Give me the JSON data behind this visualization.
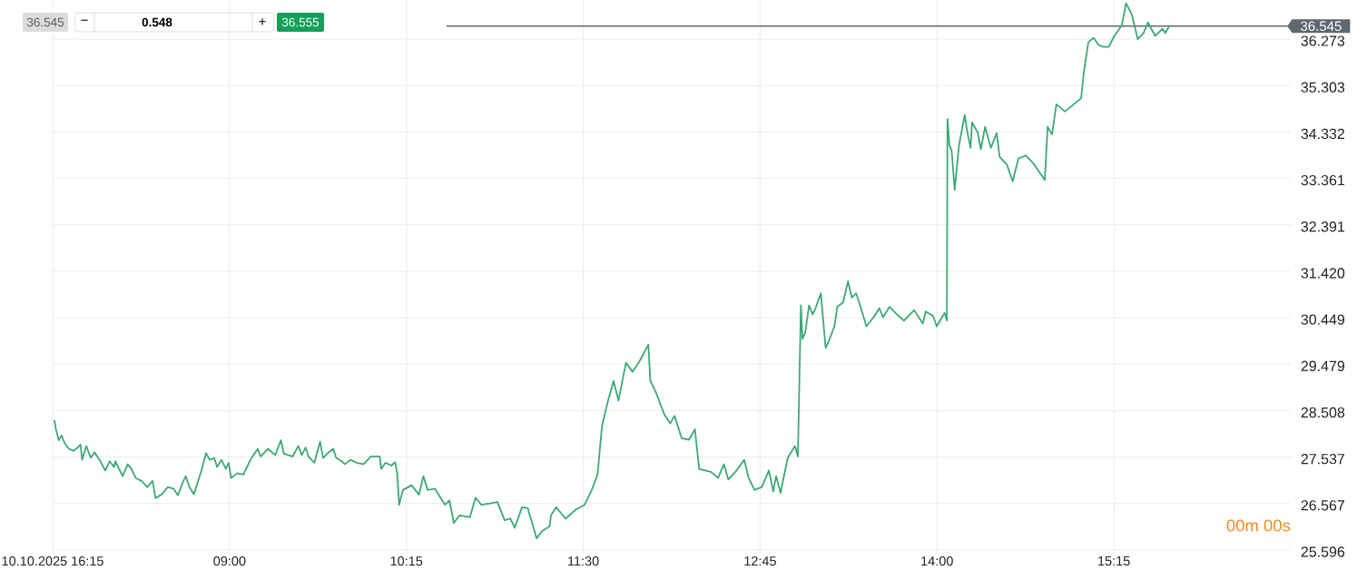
{
  "chart_data": {
    "type": "line",
    "color": "#3da877",
    "x": [
      7.762,
      7.773,
      7.793,
      7.814,
      7.834,
      7.865,
      7.896,
      7.916,
      7.947,
      7.958,
      7.988,
      8.019,
      8.046,
      8.081,
      8.122,
      8.153,
      8.184,
      8.193,
      8.245,
      8.28,
      8.307,
      8.337,
      8.378,
      8.419,
      8.456,
      8.477,
      8.522,
      8.563,
      8.604,
      8.635,
      8.666,
      8.69,
      8.717,
      8.748,
      8.799,
      8.834,
      8.861,
      8.892,
      8.912,
      8.943,
      8.974,
      8.994,
      9.011,
      9.055,
      9.097,
      9.148,
      9.169,
      9.2,
      9.22,
      9.271,
      9.323,
      9.343,
      9.363,
      9.384,
      9.446,
      9.486,
      9.511,
      9.538,
      9.558,
      9.6,
      9.64,
      9.661,
      9.702,
      9.733,
      9.754,
      9.794,
      9.815,
      9.856,
      9.897,
      9.948,
      10.0,
      10.062,
      10.072,
      10.102,
      10.143,
      10.17,
      10.185,
      10.199,
      10.225,
      10.287,
      10.339,
      10.37,
      10.4,
      10.451,
      10.523,
      10.554,
      10.585,
      10.626,
      10.698,
      10.739,
      10.78,
      10.841,
      10.893,
      10.944,
      10.985,
      11.016,
      11.067,
      11.108,
      11.17,
      11.211,
      11.262,
      11.272,
      11.309,
      11.375,
      11.447,
      11.509,
      11.56,
      11.601,
      11.632,
      11.673,
      11.714,
      11.749,
      11.802,
      11.848,
      11.898,
      11.96,
      11.974,
      12.011,
      12.073,
      12.114,
      12.145,
      12.196,
      12.248,
      12.289,
      12.319,
      12.402,
      12.453,
      12.494,
      12.525,
      12.576,
      12.638,
      12.669,
      12.71,
      12.761,
      12.812,
      12.843,
      12.863,
      12.894,
      12.945,
      12.996,
      13.017,
      13.038,
      13.049,
      13.069,
      13.096,
      13.121,
      13.142,
      13.179,
      13.213,
      13.234,
      13.275,
      13.295,
      13.336,
      13.371,
      13.398,
      13.429,
      13.47,
      13.501,
      13.552,
      13.593,
      13.618,
      13.665,
      13.716,
      13.767,
      13.839,
      13.9,
      13.92,
      13.972,
      13.998,
      14.054,
      14.07,
      14.074,
      14.088,
      14.104,
      14.125,
      14.156,
      14.196,
      14.211,
      14.237,
      14.248,
      14.289,
      14.31,
      14.34,
      14.381,
      14.422,
      14.443,
      14.494,
      14.535,
      14.576,
      14.628,
      14.68,
      14.762,
      14.782,
      14.813,
      14.844,
      14.905,
      14.967,
      15.019,
      15.039,
      15.07,
      15.107,
      15.142,
      15.173,
      15.213,
      15.254,
      15.306,
      15.336,
      15.378,
      15.419,
      15.46,
      15.491,
      15.542,
      15.593,
      15.614,
      15.644
    ],
    "values": [
      28.31,
      28.12,
      27.89,
      27.99,
      27.83,
      27.71,
      27.67,
      27.71,
      27.8,
      27.48,
      27.77,
      27.52,
      27.64,
      27.48,
      27.26,
      27.45,
      27.33,
      27.45,
      27.14,
      27.39,
      27.29,
      27.1,
      27.04,
      26.91,
      27.04,
      26.68,
      26.76,
      26.91,
      26.88,
      26.74,
      26.98,
      27.14,
      26.91,
      26.76,
      27.23,
      27.62,
      27.48,
      27.52,
      27.33,
      27.48,
      27.29,
      27.42,
      27.1,
      27.2,
      27.17,
      27.48,
      27.58,
      27.71,
      27.55,
      27.71,
      27.58,
      27.74,
      27.89,
      27.61,
      27.55,
      27.77,
      27.58,
      27.74,
      27.55,
      27.42,
      27.86,
      27.52,
      27.64,
      27.71,
      27.52,
      27.45,
      27.39,
      27.48,
      27.42,
      27.39,
      27.55,
      27.55,
      27.29,
      27.42,
      27.36,
      27.43,
      27.2,
      26.54,
      26.85,
      26.95,
      26.75,
      27.14,
      26.85,
      26.88,
      26.54,
      26.63,
      26.16,
      26.32,
      26.28,
      26.69,
      26.54,
      26.57,
      26.6,
      26.22,
      26.25,
      26.06,
      26.49,
      26.47,
      25.84,
      26.0,
      26.09,
      26.32,
      26.49,
      26.25,
      26.44,
      26.54,
      26.85,
      27.17,
      28.18,
      28.69,
      29.13,
      28.72,
      29.51,
      29.32,
      29.54,
      29.89,
      29.13,
      28.91,
      28.43,
      28.24,
      28.4,
      27.93,
      27.9,
      28.12,
      27.29,
      27.23,
      27.1,
      27.39,
      27.07,
      27.23,
      27.48,
      27.1,
      26.85,
      26.91,
      27.26,
      26.82,
      27.14,
      26.79,
      27.52,
      27.77,
      27.55,
      30.71,
      30.01,
      30.14,
      30.71,
      30.52,
      30.65,
      30.96,
      29.82,
      29.95,
      30.27,
      30.68,
      30.77,
      31.21,
      30.87,
      30.96,
      30.58,
      30.27,
      30.46,
      30.65,
      30.46,
      30.68,
      30.52,
      30.39,
      30.61,
      30.33,
      30.58,
      30.49,
      30.27,
      30.55,
      30.39,
      34.6,
      34.06,
      33.93,
      33.12,
      34.06,
      34.69,
      34.38,
      34.0,
      34.53,
      34.31,
      33.97,
      34.44,
      34.0,
      34.31,
      33.81,
      33.65,
      33.3,
      33.78,
      33.84,
      33.68,
      33.33,
      34.44,
      34.28,
      34.91,
      34.76,
      34.91,
      35.04,
      35.61,
      36.21,
      36.3,
      36.15,
      36.11,
      36.11,
      36.34,
      36.56,
      37.02,
      36.78,
      36.27,
      36.4,
      36.62,
      36.34,
      36.49,
      36.4,
      36.56
    ],
    "xlim": [
      7.75,
      16.5
    ],
    "ylim": [
      25.52,
      37.09
    ],
    "xticks": [
      {
        "value": 7.75,
        "label": "10.10.2025 16:15"
      },
      {
        "value": 9,
        "label": "09:00"
      },
      {
        "value": 10.25,
        "label": "10:15"
      },
      {
        "value": 11.5,
        "label": "11:30"
      },
      {
        "value": 12.75,
        "label": "12:45"
      },
      {
        "value": 14,
        "label": "14:00"
      },
      {
        "value": 15.25,
        "label": "15:15"
      }
    ],
    "yticks": [
      25.596,
      26.567,
      27.537,
      28.508,
      29.479,
      30.449,
      {
        "value": 31.42,
        "label": "31.420"
      },
      32.391,
      33.361,
      34.332,
      35.303,
      36.273
    ],
    "grid": true,
    "ref_lines": [
      {
        "axis": "y",
        "value": 36.545,
        "label": "36.545",
        "color": "#5f6870"
      }
    ],
    "annotations": [
      "36.545",
      "−",
      "0.548",
      "+",
      "36.555",
      "00m 00s"
    ]
  }
}
